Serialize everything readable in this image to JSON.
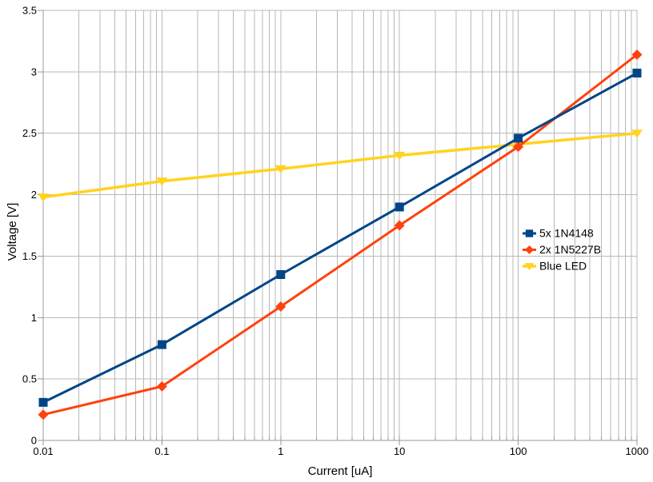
{
  "chart_data": {
    "type": "line",
    "title": "",
    "xlabel": "Current [uA]",
    "ylabel": "Voltage [V]",
    "x_scale": "log",
    "xlim": [
      0.01,
      1000
    ],
    "ylim": [
      0,
      3.5
    ],
    "x": [
      0.01,
      0.1,
      1,
      10,
      100,
      1000
    ],
    "x_tick_labels": [
      "0.01",
      "0.1",
      "1",
      "10",
      "100",
      "1000"
    ],
    "y_ticks": [
      0,
      0.5,
      1,
      1.5,
      2,
      2.5,
      3,
      3.5
    ],
    "y_tick_labels": [
      "0",
      "0.5",
      "1",
      "1.5",
      "2",
      "2.5",
      "3",
      "3.5"
    ],
    "grid": "horizontal majors; vertical log majors and minors",
    "legend_position": "inside-right-middle",
    "series": [
      {
        "name": "5x 1N4148",
        "color": "#004586",
        "marker": "square",
        "line_width": 3,
        "values": [
          0.31,
          0.78,
          1.35,
          1.9,
          2.46,
          2.99
        ]
      },
      {
        "name": "2x 1N5227B",
        "color": "#FF420E",
        "marker": "diamond",
        "line_width": 3,
        "values": [
          0.21,
          0.44,
          1.09,
          1.75,
          2.39,
          3.14
        ]
      },
      {
        "name": "Blue LED",
        "color": "#FFD320",
        "marker": "triangle-down",
        "line_width": 3.5,
        "values": [
          1.98,
          2.11,
          2.21,
          2.32,
          2.41,
          2.5
        ]
      }
    ]
  },
  "colors": {
    "background": "#ffffff",
    "grid": "#b8b8b8",
    "axis": "#999999",
    "text": "#000000"
  }
}
